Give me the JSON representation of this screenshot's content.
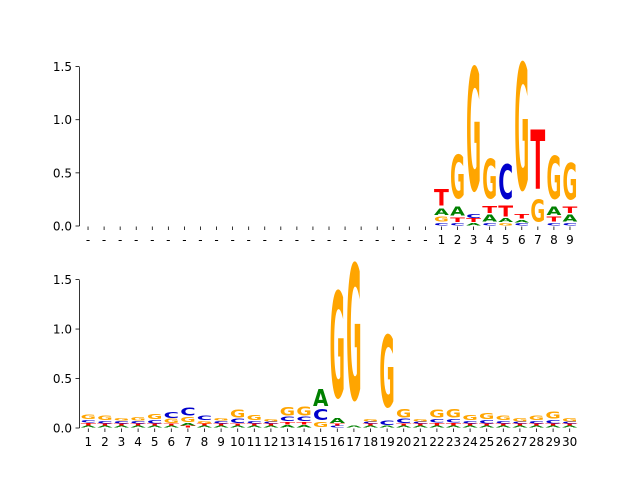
{
  "colors": {
    "A": "#008000",
    "C": "#0000cc",
    "G": "#ffa500",
    "T": "#ff0000"
  },
  "chart_data": [
    {
      "type": "sequence-logo",
      "title": "",
      "xlabel": "",
      "ylabel": "",
      "ylim": [
        0,
        1.75
      ],
      "yticks": [
        "0.0",
        "0.5",
        "1.0",
        "1.5"
      ],
      "ytick_values": [
        0,
        0.5,
        1.0,
        1.5
      ],
      "positions": [
        "-",
        "-",
        "-",
        "-",
        "-",
        "-",
        "-",
        "-",
        "-",
        "-",
        "-",
        "-",
        "-",
        "-",
        "-",
        "-",
        "-",
        "-",
        "-",
        "-",
        "-",
        "-",
        "1",
        "2",
        "3",
        "4",
        "5",
        "6",
        "7",
        "8",
        "9"
      ],
      "columns": [
        [],
        [],
        [],
        [],
        [],
        [],
        [],
        [],
        [],
        [],
        [],
        [],
        [],
        [],
        [],
        [],
        [],
        [],
        [],
        [],
        [],
        [],
        [
          {
            "b": "C",
            "h": 0.03
          },
          {
            "b": "G",
            "h": 0.06
          },
          {
            "b": "A",
            "h": 0.07
          },
          {
            "b": "T",
            "h": 0.18
          }
        ],
        [
          {
            "b": "C",
            "h": 0.03
          },
          {
            "b": "T",
            "h": 0.05
          },
          {
            "b": "A",
            "h": 0.1
          },
          {
            "b": "G",
            "h": 0.48
          }
        ],
        [
          {
            "b": "A",
            "h": 0.03
          },
          {
            "b": "T",
            "h": 0.04
          },
          {
            "b": "C",
            "h": 0.04
          },
          {
            "b": "G",
            "h": 1.35
          }
        ],
        [
          {
            "b": "C",
            "h": 0.03
          },
          {
            "b": "A",
            "h": 0.08
          },
          {
            "b": "T",
            "h": 0.08
          },
          {
            "b": "G",
            "h": 0.44
          }
        ],
        [
          {
            "b": "G",
            "h": 0.03
          },
          {
            "b": "A",
            "h": 0.04
          },
          {
            "b": "T",
            "h": 0.12
          },
          {
            "b": "C",
            "h": 0.38
          }
        ],
        [
          {
            "b": "C",
            "h": 0.03
          },
          {
            "b": "A",
            "h": 0.03
          },
          {
            "b": "T",
            "h": 0.05
          },
          {
            "b": "G",
            "h": 1.39
          }
        ],
        [
          {
            "b": "G",
            "h": 0.24
          },
          {
            "b": "T",
            "h": 0.65
          }
        ],
        [
          {
            "b": "C",
            "h": 0.03
          },
          {
            "b": "T",
            "h": 0.06
          },
          {
            "b": "A",
            "h": 0.09
          },
          {
            "b": "G",
            "h": 0.47
          }
        ],
        [
          {
            "b": "C",
            "h": 0.03
          },
          {
            "b": "A",
            "h": 0.08
          },
          {
            "b": "T",
            "h": 0.07
          },
          {
            "b": "G",
            "h": 0.4
          }
        ]
      ]
    },
    {
      "type": "sequence-logo",
      "title": "",
      "xlabel": "",
      "ylabel": "",
      "ylim": [
        0,
        1.9
      ],
      "yticks": [
        "0.0",
        "0.5",
        "1.0",
        "1.5"
      ],
      "ytick_values": [
        0,
        0.5,
        1.0,
        1.5
      ],
      "positions": [
        "1",
        "2",
        "3",
        "4",
        "5",
        "6",
        "7",
        "8",
        "9",
        "10",
        "11",
        "12",
        "13",
        "14",
        "15",
        "16",
        "17",
        "18",
        "19",
        "20",
        "21",
        "22",
        "23",
        "24",
        "25",
        "26",
        "27",
        "28",
        "29",
        "30"
      ],
      "columns": [
        [
          {
            "b": "A",
            "h": 0.02
          },
          {
            "b": "T",
            "h": 0.03
          },
          {
            "b": "C",
            "h": 0.03
          },
          {
            "b": "G",
            "h": 0.05
          }
        ],
        [
          {
            "b": "A",
            "h": 0.02
          },
          {
            "b": "T",
            "h": 0.02
          },
          {
            "b": "C",
            "h": 0.03
          },
          {
            "b": "G",
            "h": 0.05
          }
        ],
        [
          {
            "b": "A",
            "h": 0.02
          },
          {
            "b": "T",
            "h": 0.02
          },
          {
            "b": "C",
            "h": 0.03
          },
          {
            "b": "G",
            "h": 0.03
          }
        ],
        [
          {
            "b": "A",
            "h": 0.02
          },
          {
            "b": "T",
            "h": 0.02
          },
          {
            "b": "C",
            "h": 0.03
          },
          {
            "b": "G",
            "h": 0.04
          }
        ],
        [
          {
            "b": "A",
            "h": 0.02
          },
          {
            "b": "T",
            "h": 0.02
          },
          {
            "b": "C",
            "h": 0.04
          },
          {
            "b": "G",
            "h": 0.06
          }
        ],
        [
          {
            "b": "A",
            "h": 0.02
          },
          {
            "b": "T",
            "h": 0.02
          },
          {
            "b": "G",
            "h": 0.05
          },
          {
            "b": "C",
            "h": 0.07
          }
        ],
        [
          {
            "b": "T",
            "h": 0.02
          },
          {
            "b": "A",
            "h": 0.03
          },
          {
            "b": "G",
            "h": 0.06
          },
          {
            "b": "C",
            "h": 0.09
          }
        ],
        [
          {
            "b": "A",
            "h": 0.02
          },
          {
            "b": "T",
            "h": 0.02
          },
          {
            "b": "G",
            "h": 0.03
          },
          {
            "b": "C",
            "h": 0.05
          }
        ],
        [
          {
            "b": "A",
            "h": 0.02
          },
          {
            "b": "T",
            "h": 0.02
          },
          {
            "b": "C",
            "h": 0.03
          },
          {
            "b": "G",
            "h": 0.03
          }
        ],
        [
          {
            "b": "A",
            "h": 0.02
          },
          {
            "b": "T",
            "h": 0.02
          },
          {
            "b": "C",
            "h": 0.05
          },
          {
            "b": "G",
            "h": 0.09
          }
        ],
        [
          {
            "b": "A",
            "h": 0.02
          },
          {
            "b": "T",
            "h": 0.02
          },
          {
            "b": "C",
            "h": 0.03
          },
          {
            "b": "G",
            "h": 0.06
          }
        ],
        [
          {
            "b": "A",
            "h": 0.02
          },
          {
            "b": "T",
            "h": 0.02
          },
          {
            "b": "C",
            "h": 0.02
          },
          {
            "b": "G",
            "h": 0.03
          }
        ],
        [
          {
            "b": "A",
            "h": 0.03
          },
          {
            "b": "T",
            "h": 0.03
          },
          {
            "b": "C",
            "h": 0.05
          },
          {
            "b": "G",
            "h": 0.1
          }
        ],
        [
          {
            "b": "A",
            "h": 0.03
          },
          {
            "b": "T",
            "h": 0.03
          },
          {
            "b": "C",
            "h": 0.05
          },
          {
            "b": "G",
            "h": 0.11
          }
        ],
        [
          {
            "b": "G",
            "h": 0.06
          },
          {
            "b": "C",
            "h": 0.13
          },
          {
            "b": "A",
            "h": 0.2
          }
        ],
        [
          {
            "b": "C",
            "h": 0.02
          },
          {
            "b": "T",
            "h": 0.02
          },
          {
            "b": "A",
            "h": 0.06
          },
          {
            "b": "G",
            "h": 1.25
          }
        ],
        [
          {
            "b": "A",
            "h": 0.02
          },
          {
            "b": "G",
            "h": 1.6
          }
        ],
        [
          {
            "b": "A",
            "h": 0.02
          },
          {
            "b": "T",
            "h": 0.02
          },
          {
            "b": "C",
            "h": 0.02
          },
          {
            "b": "G",
            "h": 0.03
          }
        ],
        [
          {
            "b": "A",
            "h": 0.02
          },
          {
            "b": "C",
            "h": 0.05
          },
          {
            "b": "G",
            "h": 0.85
          }
        ],
        [
          {
            "b": "A",
            "h": 0.02
          },
          {
            "b": "T",
            "h": 0.02
          },
          {
            "b": "C",
            "h": 0.05
          },
          {
            "b": "G",
            "h": 0.1
          }
        ],
        [
          {
            "b": "A",
            "h": 0.02
          },
          {
            "b": "T",
            "h": 0.02
          },
          {
            "b": "C",
            "h": 0.02
          },
          {
            "b": "G",
            "h": 0.03
          }
        ],
        [
          {
            "b": "A",
            "h": 0.02
          },
          {
            "b": "T",
            "h": 0.03
          },
          {
            "b": "C",
            "h": 0.04
          },
          {
            "b": "G",
            "h": 0.09
          }
        ],
        [
          {
            "b": "A",
            "h": 0.02
          },
          {
            "b": "T",
            "h": 0.03
          },
          {
            "b": "C",
            "h": 0.04
          },
          {
            "b": "G",
            "h": 0.1
          }
        ],
        [
          {
            "b": "A",
            "h": 0.02
          },
          {
            "b": "T",
            "h": 0.02
          },
          {
            "b": "C",
            "h": 0.03
          },
          {
            "b": "G",
            "h": 0.06
          }
        ],
        [
          {
            "b": "A",
            "h": 0.02
          },
          {
            "b": "T",
            "h": 0.02
          },
          {
            "b": "C",
            "h": 0.04
          },
          {
            "b": "G",
            "h": 0.07
          }
        ],
        [
          {
            "b": "A",
            "h": 0.02
          },
          {
            "b": "T",
            "h": 0.02
          },
          {
            "b": "C",
            "h": 0.03
          },
          {
            "b": "G",
            "h": 0.05
          }
        ],
        [
          {
            "b": "A",
            "h": 0.02
          },
          {
            "b": "T",
            "h": 0.02
          },
          {
            "b": "C",
            "h": 0.02
          },
          {
            "b": "G",
            "h": 0.04
          }
        ],
        [
          {
            "b": "A",
            "h": 0.02
          },
          {
            "b": "T",
            "h": 0.02
          },
          {
            "b": "C",
            "h": 0.03
          },
          {
            "b": "G",
            "h": 0.05
          }
        ],
        [
          {
            "b": "A",
            "h": 0.02
          },
          {
            "b": "T",
            "h": 0.02
          },
          {
            "b": "C",
            "h": 0.04
          },
          {
            "b": "G",
            "h": 0.08
          }
        ],
        [
          {
            "b": "A",
            "h": 0.02
          },
          {
            "b": "T",
            "h": 0.02
          },
          {
            "b": "C",
            "h": 0.02
          },
          {
            "b": "G",
            "h": 0.04
          }
        ]
      ]
    }
  ]
}
